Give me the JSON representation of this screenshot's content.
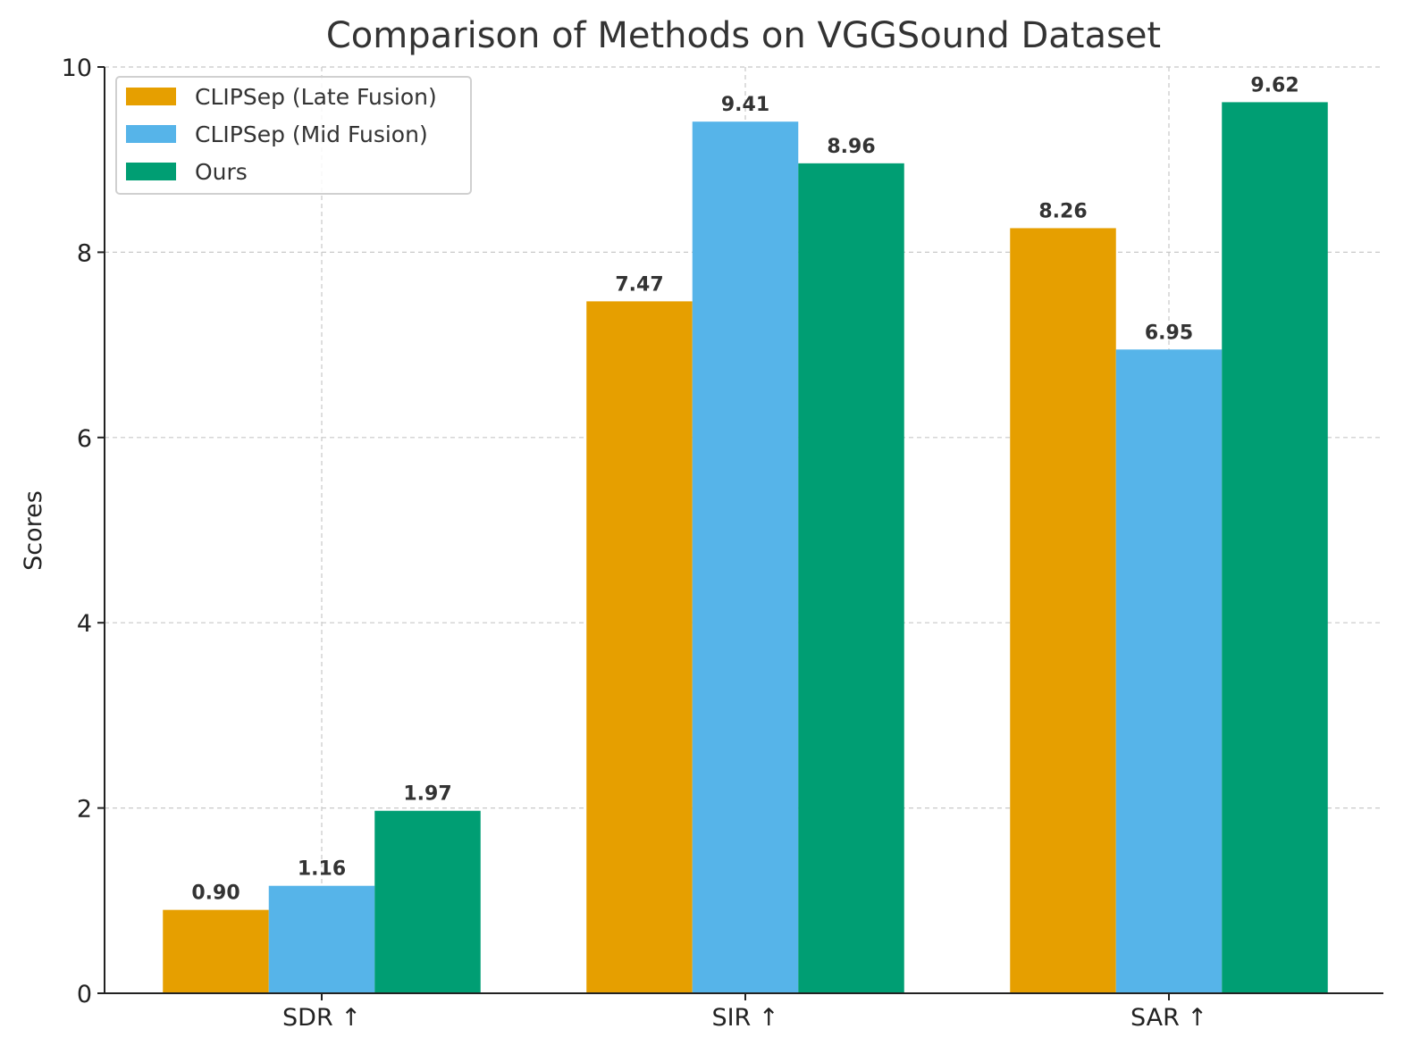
{
  "chart_data": {
    "type": "bar",
    "title": "Comparison of Methods on VGGSound Dataset",
    "xlabel": "",
    "ylabel": "Scores",
    "categories": [
      "SDR ↑",
      "SIR ↑",
      "SAR ↑"
    ],
    "ylim": [
      0,
      10
    ],
    "yticks": [
      "0",
      "2",
      "4",
      "6",
      "8",
      "10"
    ],
    "grid": true,
    "legend_position": "top-left",
    "series": [
      {
        "name": "CLIPSep (Late Fusion)",
        "values": [
          0.9,
          7.47,
          8.26
        ],
        "labels": [
          "0.90",
          "7.47",
          "8.26"
        ],
        "color": "#E69F00"
      },
      {
        "name": "CLIPSep (Mid Fusion)",
        "values": [
          1.16,
          9.41,
          6.95
        ],
        "labels": [
          "1.16",
          "9.41",
          "6.95"
        ],
        "color": "#56B4E9"
      },
      {
        "name": "Ours",
        "values": [
          1.97,
          8.96,
          9.62
        ],
        "labels": [
          "1.97",
          "8.96",
          "9.62"
        ],
        "color": "#009E73"
      }
    ]
  }
}
